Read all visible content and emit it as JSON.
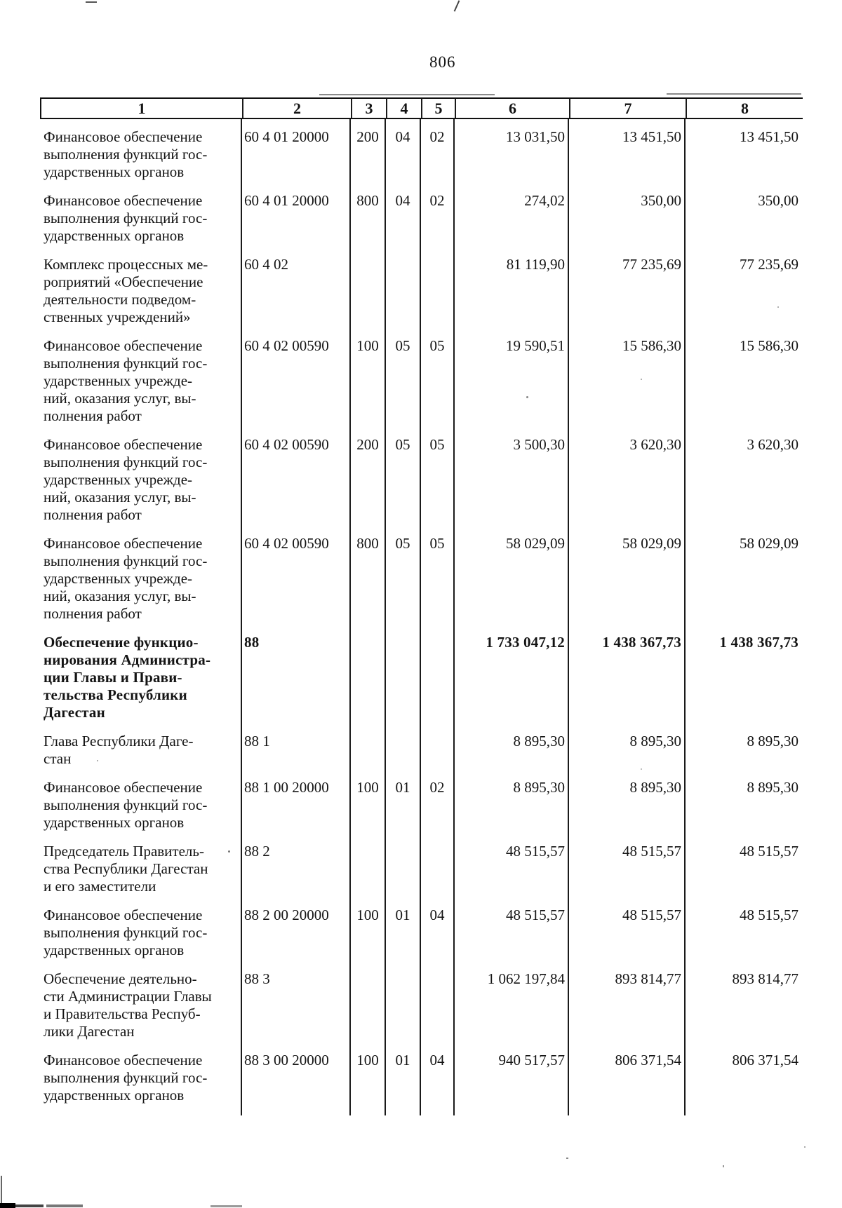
{
  "page": {
    "number": "806"
  },
  "table": {
    "headers": [
      "1",
      "2",
      "3",
      "4",
      "5",
      "6",
      "7",
      "8"
    ],
    "rows": [
      {
        "bold": false,
        "cells": [
          "Финансовое обеспечение\nвыполнения функций гос-\nударственных органов",
          "60 4 01 20000",
          "200",
          "04",
          "02",
          "13 031,50",
          "13 451,50",
          "13 451,50"
        ]
      },
      {
        "bold": false,
        "cells": [
          "Финансовое обеспечение\nвыполнения функций гос-\nударственных органов",
          "60 4 01 20000",
          "800",
          "04",
          "02",
          "274,02",
          "350,00",
          "350,00"
        ]
      },
      {
        "bold": false,
        "cells": [
          "Комплекс процессных ме-\nроприятий «Обеспечение\nдеятельности подведом-\nственных учреждений»",
          "60 4 02",
          "",
          "",
          "",
          "81 119,90",
          "77 235,69",
          "77 235,69"
        ]
      },
      {
        "bold": false,
        "cells": [
          "Финансовое обеспечение\nвыполнения функций гос-\nударственных учрежде-\nний, оказания услуг, вы-\nполнения работ",
          "60 4 02 00590",
          "100",
          "05",
          "05",
          "19 590,51",
          "15 586,30",
          "15 586,30"
        ]
      },
      {
        "bold": false,
        "cells": [
          "Финансовое обеспечение\nвыполнения функций гос-\nударственных учрежде-\nний, оказания услуг, вы-\nполнения работ",
          "60 4 02 00590",
          "200",
          "05",
          "05",
          "3 500,30",
          "3 620,30",
          "3 620,30"
        ]
      },
      {
        "bold": false,
        "cells": [
          "Финансовое обеспечение\nвыполнения функций гос-\nударственных учрежде-\nний, оказания услуг, вы-\nполнения работ",
          "60 4 02 00590",
          "800",
          "05",
          "05",
          "58 029,09",
          "58 029,09",
          "58 029,09"
        ]
      },
      {
        "bold": true,
        "cells": [
          "Обеспечение функцио-\nнирования Администра-\nции Главы и Прави-\nтельства Республики\nДагестан",
          "88",
          "",
          "",
          "",
          "1 733 047,12",
          "1 438 367,73",
          "1 438 367,73"
        ]
      },
      {
        "bold": false,
        "cells": [
          "Глава Республики Даге-\nстан",
          "88 1",
          "",
          "",
          "",
          "8 895,30",
          "8 895,30",
          "8 895,30"
        ]
      },
      {
        "bold": false,
        "cells": [
          "Финансовое обеспечение\nвыполнения функций гос-\nударственных органов",
          "88 1 00 20000",
          "100",
          "01",
          "02",
          "8 895,30",
          "8 895,30",
          "8 895,30"
        ]
      },
      {
        "bold": false,
        "cells": [
          "Председатель Правитель-\nства Республики Дагестан\nи его заместители",
          "88 2",
          "",
          "",
          "",
          "48 515,57",
          "48 515,57",
          "48 515,57"
        ]
      },
      {
        "bold": false,
        "cells": [
          "Финансовое обеспечение\nвыполнения функций гос-\nударственных органов",
          "88 2 00 20000",
          "100",
          "01",
          "04",
          "48 515,57",
          "48 515,57",
          "48 515,57"
        ]
      },
      {
        "bold": false,
        "cells": [
          "Обеспечение деятельно-\nсти Администрации Главы\nи Правительства Респуб-\nлики Дагестан",
          "88 3",
          "",
          "",
          "",
          "1 062 197,84",
          "893 814,77",
          "893 814,77"
        ]
      },
      {
        "bold": false,
        "cells": [
          "Финансовое обеспечение\nвыполнения функций гос-\nударственных органов",
          "88 3 00 20000",
          "100",
          "01",
          "04",
          "940 517,57",
          "806 371,54",
          "806 371,54"
        ]
      }
    ]
  }
}
